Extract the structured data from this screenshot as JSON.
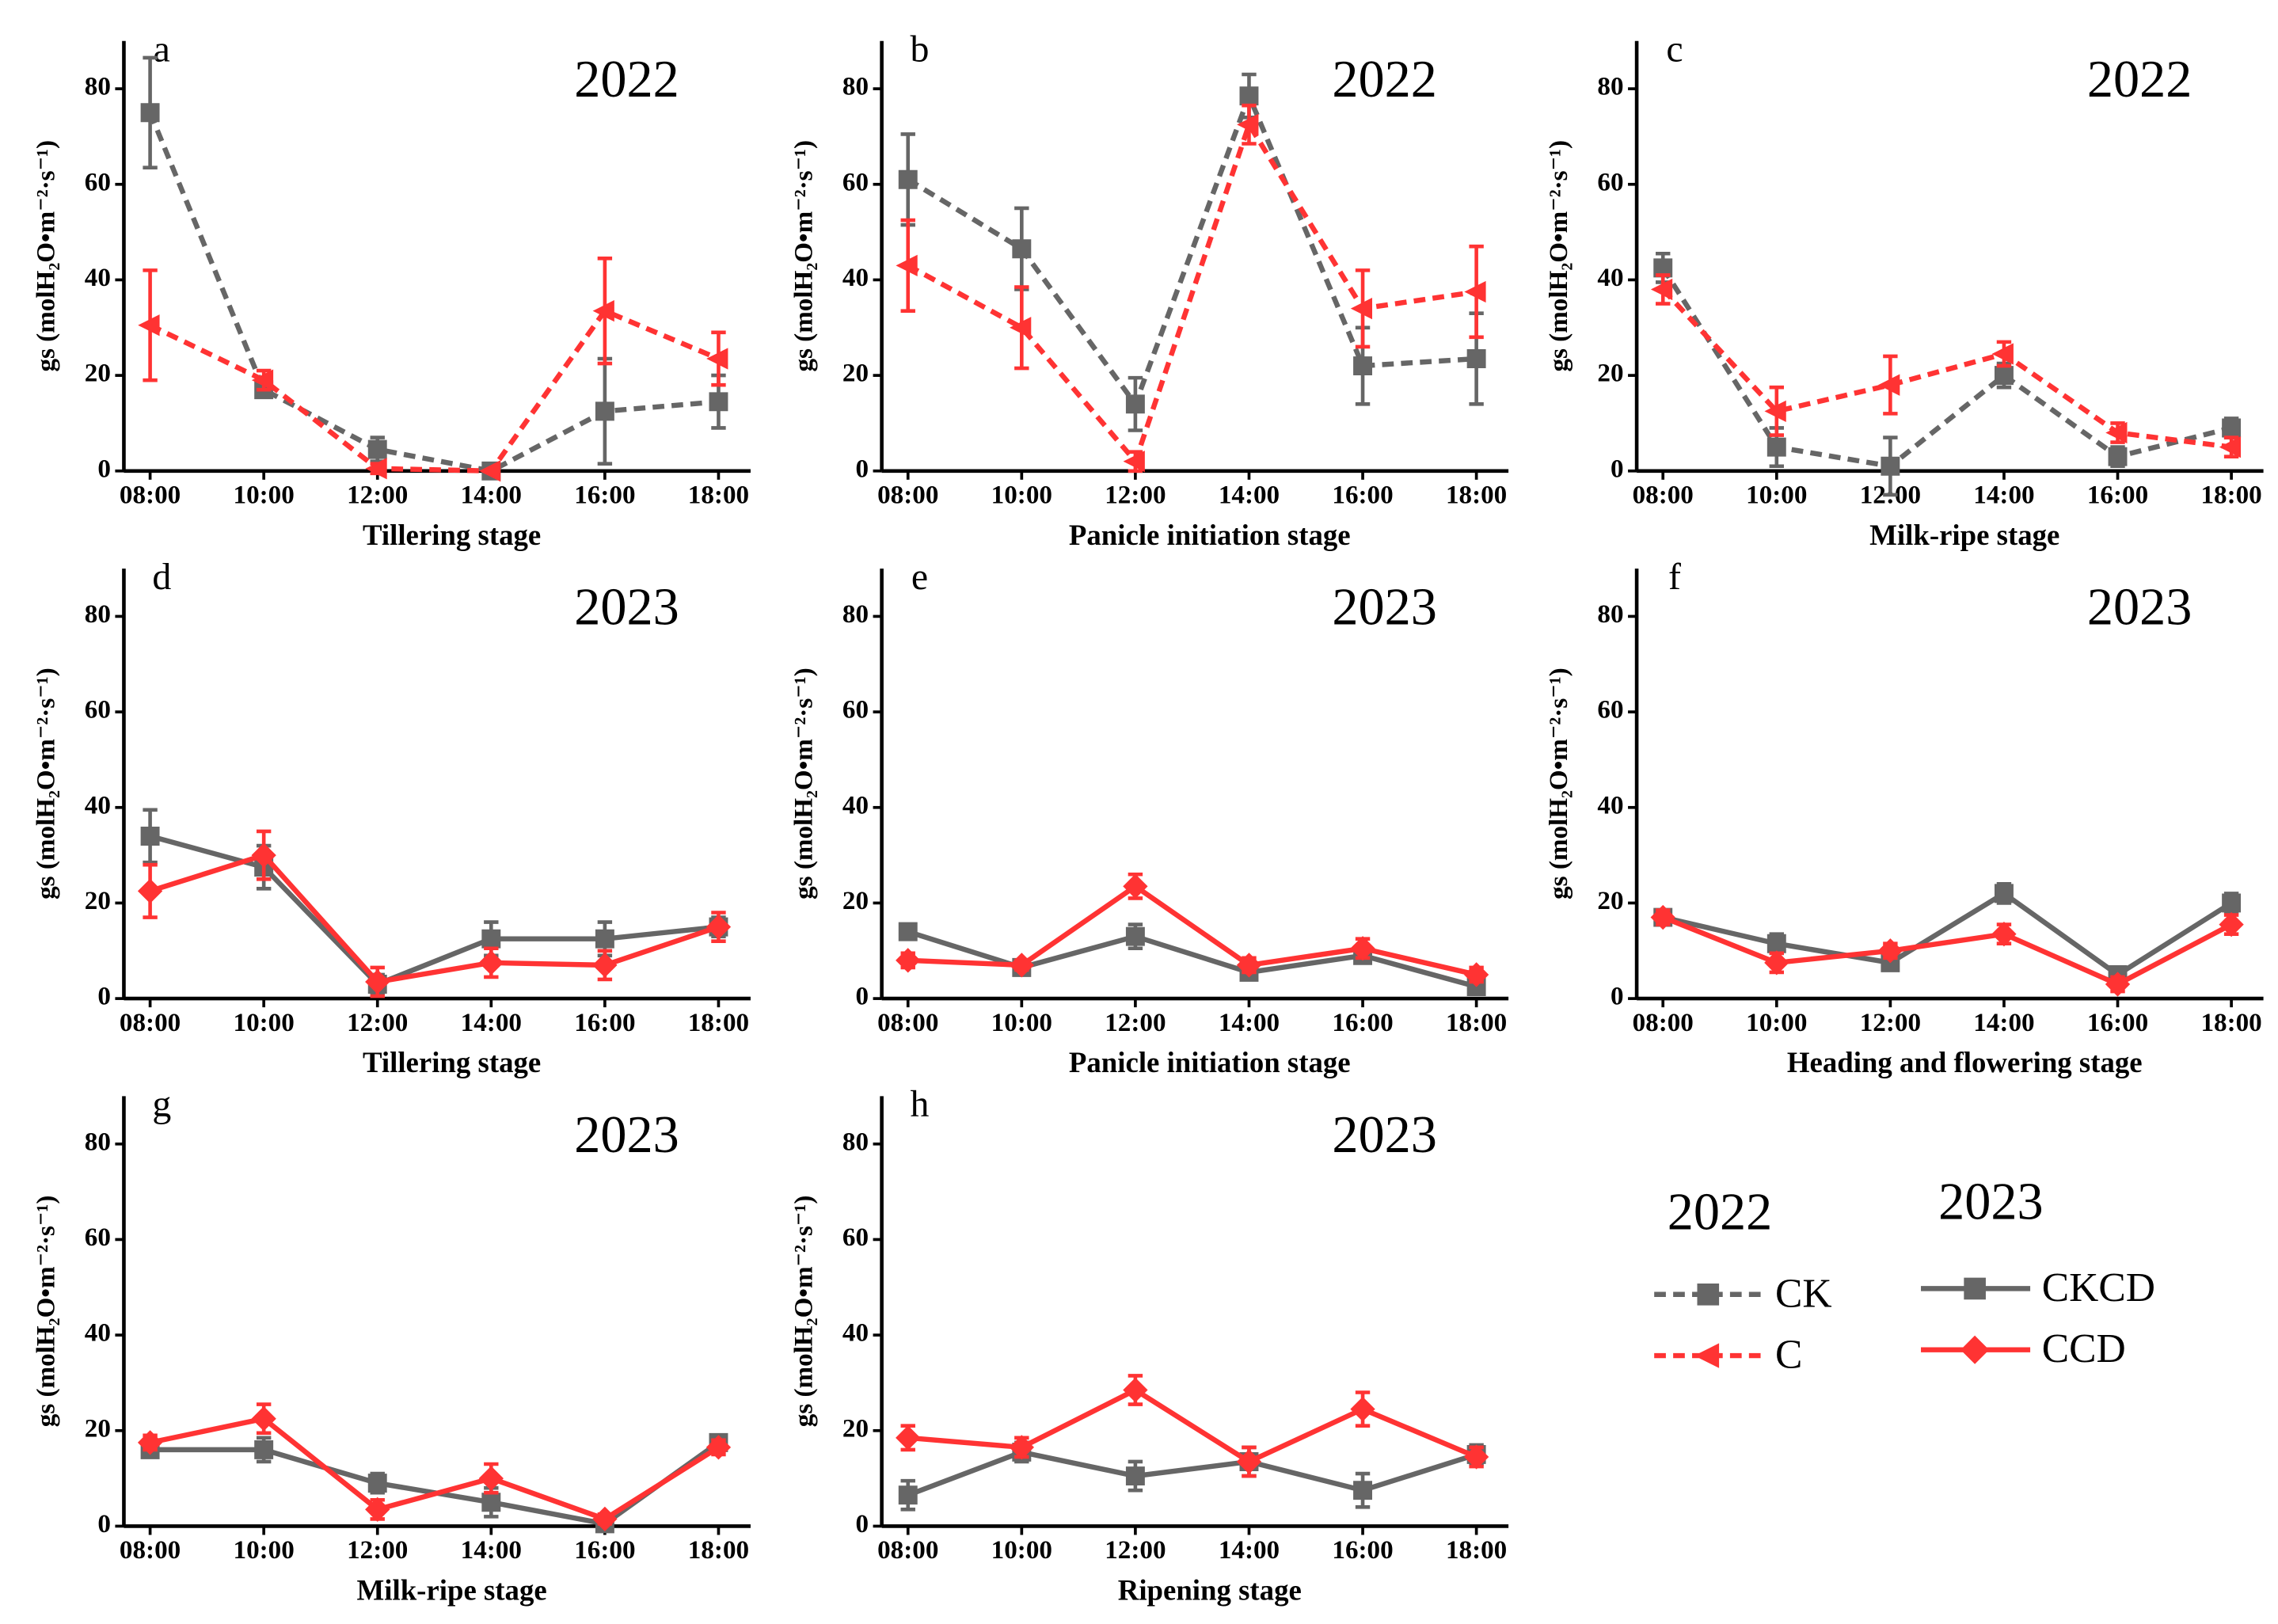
{
  "chart_data": [
    {
      "type": "line",
      "label": "a",
      "annotation": "2022",
      "xlabel": "Tillering stage",
      "ylabel": "gs (molH₂O•m⁻²·s⁻¹)",
      "categories": [
        "08:00",
        "10:00",
        "12:00",
        "14:00",
        "16:00",
        "18:00"
      ],
      "ylim": [
        0,
        90
      ],
      "yticks": [
        0,
        20,
        40,
        60,
        80
      ],
      "series": [
        {
          "name": "CK",
          "color": "#666666",
          "dashed": true,
          "marker": "square",
          "values": [
            75,
            17,
            4.5,
            0,
            12.5,
            14.5
          ],
          "errors": [
            11.5,
            1.5,
            2.5,
            0,
            11,
            5.5
          ]
        },
        {
          "name": "C",
          "color": "#ff3333",
          "dashed": true,
          "marker": "triangle-left",
          "values": [
            30.5,
            19,
            0.5,
            0,
            33.5,
            23.5
          ],
          "errors": [
            11.5,
            2,
            1,
            0,
            11,
            5.5
          ]
        }
      ]
    },
    {
      "type": "line",
      "label": "b",
      "annotation": "2022",
      "xlabel": "Panicle initiation stage",
      "ylabel": "gs (molH₂O•m⁻²·s⁻¹)",
      "categories": [
        "08:00",
        "10:00",
        "12:00",
        "14:00",
        "16:00",
        "18:00"
      ],
      "ylim": [
        0,
        90
      ],
      "yticks": [
        0,
        20,
        40,
        60,
        80
      ],
      "series": [
        {
          "name": "CK",
          "color": "#666666",
          "dashed": true,
          "marker": "square",
          "values": [
            61,
            46.5,
            14,
            78.5,
            22,
            23.5
          ],
          "errors": [
            9.5,
            8.5,
            5.5,
            4.5,
            8,
            9.5
          ]
        },
        {
          "name": "C",
          "color": "#ff3333",
          "dashed": true,
          "marker": "triangle-left",
          "values": [
            43,
            30,
            2,
            72.5,
            34,
            37.5
          ],
          "errors": [
            9.5,
            8.5,
            2,
            4,
            8,
            9.5
          ]
        }
      ]
    },
    {
      "type": "line",
      "label": "c",
      "annotation": "2022",
      "xlabel": "Milk-ripe stage",
      "ylabel": "gs (molH₂O•m⁻²·s⁻¹)",
      "categories": [
        "08:00",
        "10:00",
        "12:00",
        "14:00",
        "16:00",
        "18:00"
      ],
      "ylim": [
        0,
        90
      ],
      "yticks": [
        0,
        20,
        40,
        60,
        80
      ],
      "series": [
        {
          "name": "CK",
          "color": "#666666",
          "dashed": true,
          "marker": "square",
          "values": [
            42.5,
            5,
            1,
            20,
            3,
            9
          ],
          "errors": [
            3,
            4,
            6,
            2.5,
            2,
            2
          ]
        },
        {
          "name": "C",
          "color": "#ff3333",
          "dashed": true,
          "marker": "triangle-left",
          "values": [
            38,
            12.5,
            18,
            24.5,
            8,
            5
          ],
          "errors": [
            3,
            5,
            6,
            2.5,
            2,
            2
          ]
        }
      ]
    },
    {
      "type": "line",
      "label": "d",
      "annotation": "2023",
      "xlabel": "Tillering stage",
      "ylabel": "gs (molH₂O•m⁻²·s⁻¹)",
      "categories": [
        "08:00",
        "10:00",
        "12:00",
        "14:00",
        "16:00",
        "18:00"
      ],
      "ylim": [
        0,
        90
      ],
      "yticks": [
        0,
        20,
        40,
        60,
        80
      ],
      "series": [
        {
          "name": "CKCD",
          "color": "#666666",
          "dashed": false,
          "marker": "square",
          "values": [
            34,
            27.5,
            3,
            12.5,
            12.5,
            15
          ],
          "errors": [
            5.5,
            4.5,
            2,
            3.5,
            3.5,
            2
          ]
        },
        {
          "name": "CCD",
          "color": "#ff3333",
          "dashed": false,
          "marker": "diamond",
          "values": [
            22.5,
            30,
            3.5,
            7.5,
            7,
            15
          ],
          "errors": [
            5.5,
            5,
            3,
            3,
            3,
            3
          ]
        }
      ]
    },
    {
      "type": "line",
      "label": "e",
      "annotation": "2023",
      "xlabel": "Panicle initiation stage",
      "ylabel": "gs (molH₂O•m⁻²·s⁻¹)",
      "categories": [
        "08:00",
        "10:00",
        "12:00",
        "14:00",
        "16:00",
        "18:00"
      ],
      "ylim": [
        0,
        90
      ],
      "yticks": [
        0,
        20,
        40,
        60,
        80
      ],
      "series": [
        {
          "name": "CKCD",
          "color": "#666666",
          "dashed": false,
          "marker": "square",
          "values": [
            14,
            6.5,
            13,
            5.5,
            9,
            2.5
          ],
          "errors": [
            1.5,
            1,
            2.5,
            1.5,
            1.5,
            1.5
          ]
        },
        {
          "name": "CCD",
          "color": "#ff3333",
          "dashed": false,
          "marker": "diamond",
          "values": [
            8,
            7,
            23.5,
            7,
            10.5,
            5
          ],
          "errors": [
            1.5,
            1,
            2.5,
            1.5,
            2,
            1.5
          ]
        }
      ]
    },
    {
      "type": "line",
      "label": "f",
      "annotation": "2023",
      "xlabel": "Heading and flowering stage",
      "ylabel": "gs (molH₂O•m⁻²·s⁻¹)",
      "categories": [
        "08:00",
        "10:00",
        "12:00",
        "14:00",
        "16:00",
        "18:00"
      ],
      "ylim": [
        0,
        90
      ],
      "yticks": [
        0,
        20,
        40,
        60,
        80
      ],
      "series": [
        {
          "name": "CKCD",
          "color": "#666666",
          "dashed": false,
          "marker": "square",
          "values": [
            17,
            11.5,
            7.5,
            22,
            5,
            20
          ],
          "errors": [
            1.5,
            2,
            1.5,
            2,
            1.5,
            2
          ]
        },
        {
          "name": "CCD",
          "color": "#ff3333",
          "dashed": false,
          "marker": "diamond",
          "values": [
            17,
            7.5,
            10,
            13.5,
            3,
            15.5
          ],
          "errors": [
            1.5,
            2,
            1.5,
            2,
            1.5,
            2
          ]
        }
      ]
    },
    {
      "type": "line",
      "label": "g",
      "annotation": "2023",
      "xlabel": "Milk-ripe stage",
      "ylabel": "gs (molH₂O•m⁻²·s⁻¹)",
      "categories": [
        "08:00",
        "10:00",
        "12:00",
        "14:00",
        "16:00",
        "18:00"
      ],
      "ylim": [
        0,
        90
      ],
      "yticks": [
        0,
        20,
        40,
        60,
        80
      ],
      "series": [
        {
          "name": "CKCD",
          "color": "#666666",
          "dashed": false,
          "marker": "square",
          "values": [
            16,
            16,
            9,
            5,
            0.5,
            17.5
          ],
          "errors": [
            1.5,
            2.5,
            2,
            3,
            0.5,
            1.5
          ]
        },
        {
          "name": "CCD",
          "color": "#ff3333",
          "dashed": false,
          "marker": "diamond",
          "values": [
            17.5,
            22.5,
            3.5,
            10,
            1.5,
            16.5
          ],
          "errors": [
            1.5,
            3,
            2,
            3,
            1,
            1.5
          ]
        }
      ]
    },
    {
      "type": "line",
      "label": "h",
      "annotation": "2023",
      "xlabel": "Ripening stage",
      "ylabel": "gs (molH₂O•m⁻²·s⁻¹)",
      "categories": [
        "08:00",
        "10:00",
        "12:00",
        "14:00",
        "16:00",
        "18:00"
      ],
      "ylim": [
        0,
        90
      ],
      "yticks": [
        0,
        20,
        40,
        60,
        80
      ],
      "series": [
        {
          "name": "CKCD",
          "color": "#666666",
          "dashed": false,
          "marker": "square",
          "values": [
            6.5,
            15.5,
            10.5,
            13.5,
            7.5,
            15
          ],
          "errors": [
            3,
            2,
            3,
            3,
            3.5,
            2
          ]
        },
        {
          "name": "CCD",
          "color": "#ff3333",
          "dashed": false,
          "marker": "diamond",
          "values": [
            18.5,
            16.5,
            28.5,
            13.5,
            24.5,
            14.5
          ],
          "errors": [
            2.5,
            2,
            3,
            3,
            3.5,
            2
          ]
        }
      ]
    }
  ],
  "legend": {
    "titles": [
      "2022",
      "2023"
    ]
  }
}
